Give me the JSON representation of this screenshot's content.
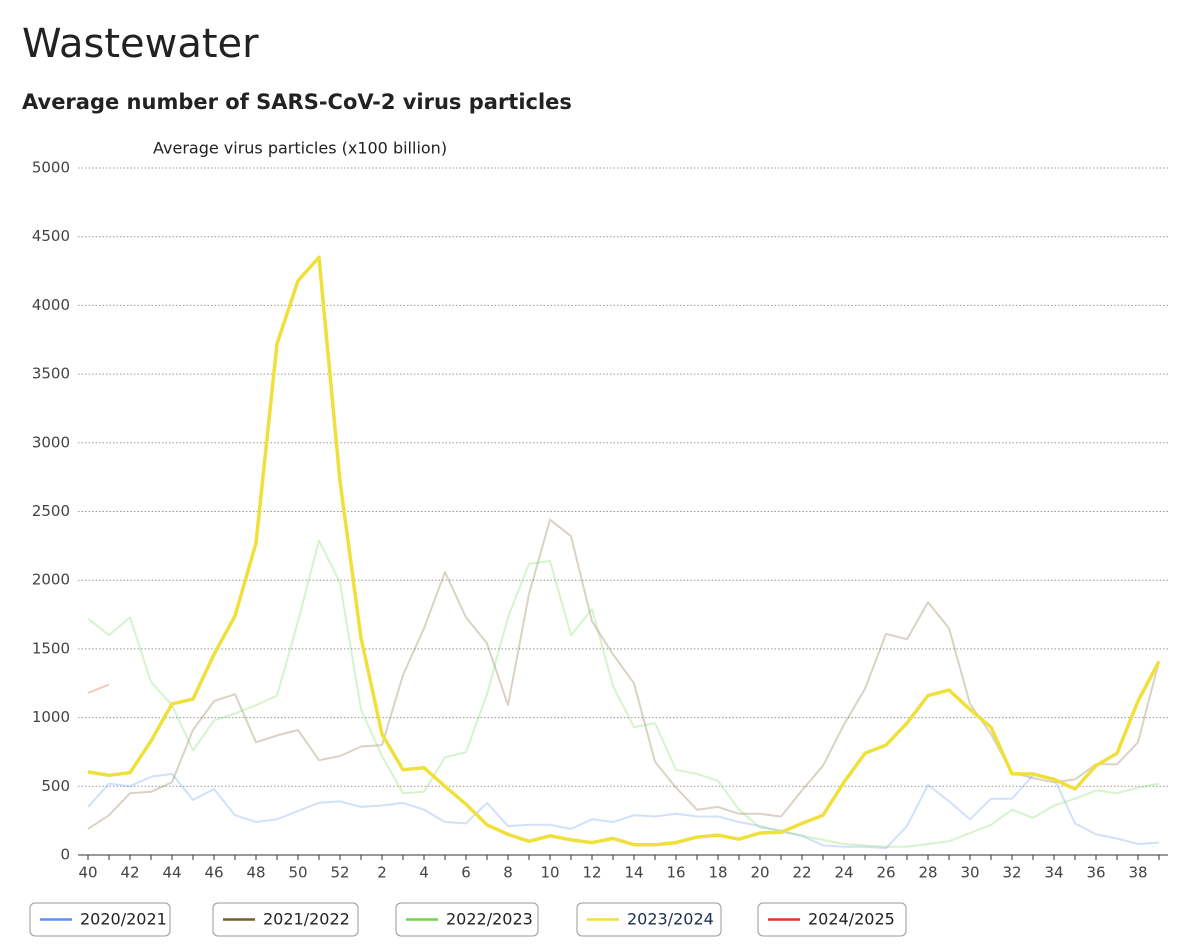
{
  "chart_data": {
    "type": "line",
    "title": "Wastewater",
    "subtitle": "Average number of SARS-CoV-2 virus particles",
    "y_label": "Average virus particles (x100 billion)",
    "categories": [
      "40",
      null,
      "42",
      null,
      "44",
      null,
      "46",
      null,
      "48",
      null,
      "50",
      null,
      "52",
      null,
      "2",
      null,
      "4",
      null,
      "6",
      null,
      "8",
      null,
      "10",
      null,
      "12",
      null,
      "14",
      null,
      "16",
      null,
      "18",
      null,
      "20",
      null,
      "22",
      null,
      "24",
      null,
      "26",
      null,
      "28",
      null,
      "30",
      null,
      "32",
      null,
      "34",
      null,
      "36",
      null,
      "38",
      null
    ],
    "ylim": [
      0,
      5000
    ],
    "yticks": [
      0,
      500,
      1000,
      1500,
      2000,
      2500,
      3000,
      3500,
      4000,
      4500,
      5000
    ],
    "grid": true,
    "series": [
      {
        "name": "2020/2021",
        "color": "#5b8ff0",
        "values": [
          350,
          520,
          500,
          570,
          590,
          400,
          480,
          290,
          240,
          260,
          320,
          380,
          390,
          350,
          360,
          380,
          330,
          240,
          230,
          380,
          210,
          220,
          220,
          190,
          260,
          240,
          290,
          280,
          300,
          280,
          280,
          240,
          210,
          170,
          140,
          70,
          60,
          60,
          50,
          210,
          510,
          390,
          260,
          410,
          410,
          580,
          560,
          230,
          150,
          120,
          80,
          90
        ]
      },
      {
        "name": "2021/2022",
        "color": "#7a5c2e",
        "values": [
          190,
          290,
          450,
          460,
          530,
          910,
          1120,
          1170,
          820,
          870,
          910,
          690,
          720,
          790,
          800,
          1310,
          1650,
          2060,
          1730,
          1540,
          1090,
          1900,
          2440,
          2320,
          1700,
          1460,
          1250,
          680,
          490,
          330,
          350,
          300,
          300,
          280,
          470,
          650,
          950,
          1210,
          1610,
          1570,
          1840,
          1650,
          1100,
          880,
          600,
          560,
          530,
          550,
          660,
          660,
          820,
          1410
        ]
      },
      {
        "name": "2022/2023",
        "color": "#6fd44a",
        "values": [
          1720,
          1600,
          1730,
          1260,
          1090,
          760,
          980,
          1030,
          1090,
          1160,
          1700,
          2290,
          1980,
          1060,
          720,
          450,
          460,
          710,
          750,
          1170,
          1730,
          2120,
          2140,
          1600,
          1790,
          1230,
          930,
          960,
          620,
          590,
          540,
          330,
          200,
          180,
          140,
          110,
          80,
          70,
          60,
          60,
          80,
          100,
          160,
          220,
          330,
          270,
          360,
          410,
          470,
          450,
          490,
          520
        ]
      },
      {
        "name": "2023/2024",
        "color": "#f0e03c",
        "values": [
          605,
          580,
          600,
          830,
          1100,
          1135,
          1460,
          1740,
          2270,
          3720,
          4180,
          4350,
          2720,
          1580,
          880,
          620,
          635,
          500,
          370,
          220,
          150,
          100,
          140,
          110,
          90,
          120,
          75,
          75,
          90,
          130,
          145,
          115,
          160,
          165,
          230,
          290,
          530,
          740,
          800,
          960,
          1160,
          1200,
          1060,
          930,
          590,
          590,
          550,
          480,
          650,
          740,
          1120,
          1410
        ]
      },
      {
        "name": "2024/2025",
        "color": "#e03a2a",
        "values": [
          1180,
          1240,
          null,
          null,
          null,
          null,
          null,
          null,
          null,
          null,
          null,
          null,
          null,
          null,
          null,
          null,
          null,
          null,
          null,
          null,
          null,
          null,
          null,
          null,
          null,
          null,
          null,
          null,
          null,
          null,
          null,
          null,
          null,
          null,
          null,
          null,
          null,
          null,
          null,
          null,
          null,
          null,
          null,
          null,
          null,
          null,
          null,
          null,
          null,
          null,
          null,
          null
        ]
      }
    ]
  }
}
